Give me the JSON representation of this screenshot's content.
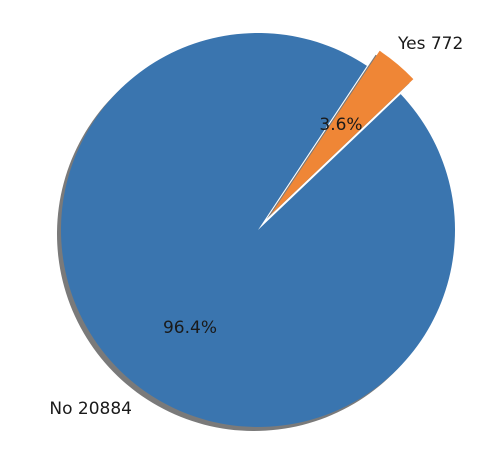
{
  "chart_data": {
    "type": "pie",
    "slices": [
      {
        "label": "No 20884",
        "category": "No",
        "value": 20884,
        "percent_label": "96.4%",
        "color": "#3a75af",
        "exploded": false
      },
      {
        "label": "Yes 772",
        "category": "Yes",
        "value": 772,
        "percent_label": "3.6%",
        "color": "#ef8636",
        "exploded": true
      }
    ],
    "shadow": true,
    "shadow_color": "#7a7a7a",
    "title": "",
    "legend": "none"
  }
}
